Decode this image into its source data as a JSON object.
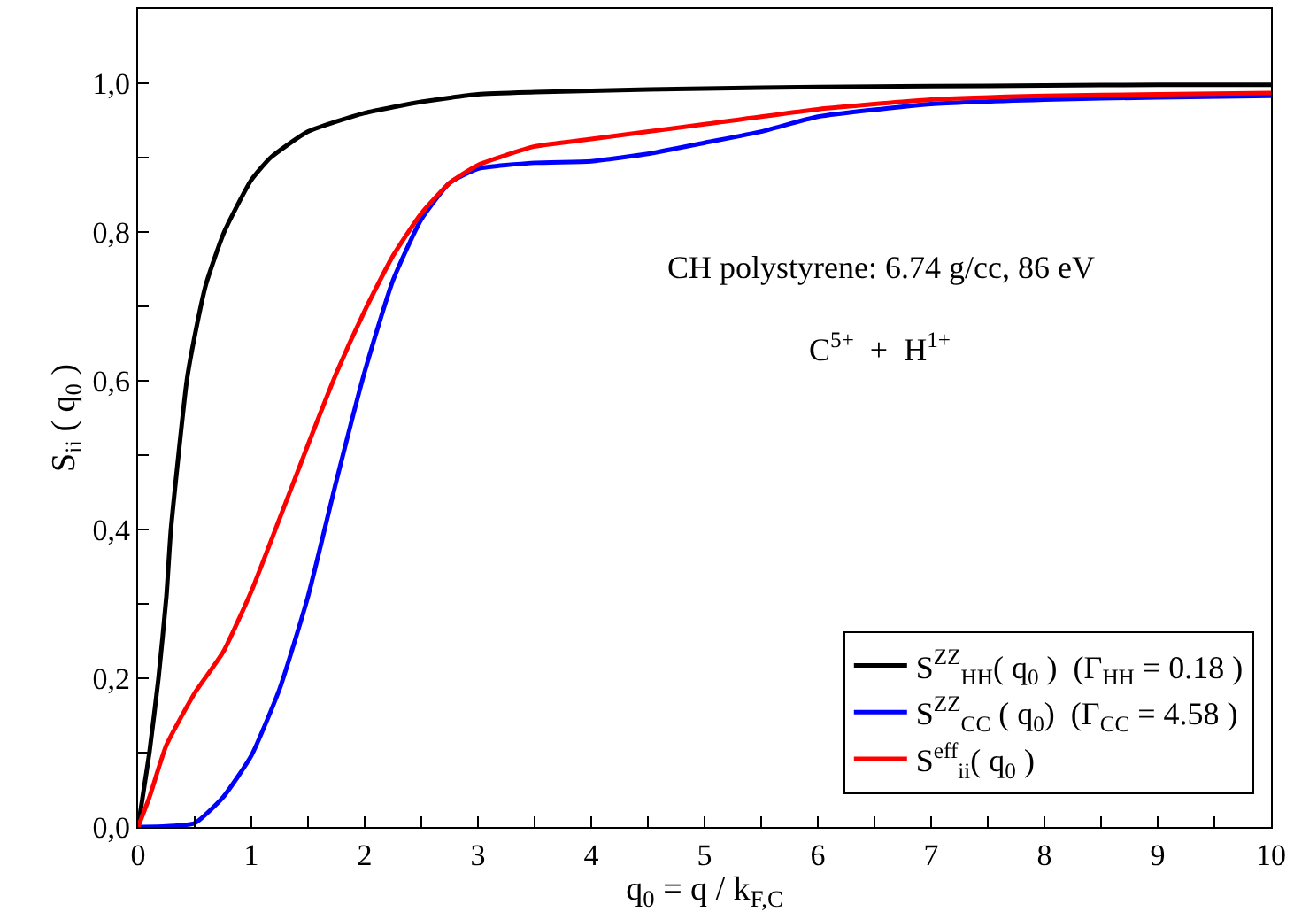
{
  "chart_data": {
    "type": "line",
    "xlabel": "q$_{0}$ = q / k$_{F,C}$",
    "ylabel": "S$_{ii}$ ( q$_{0}$ )",
    "annotations": [
      "CH polystyrene: 6.74 g/cc, 86 eV",
      "C$^{5+}$  +  H$^{1+}$"
    ],
    "x": [
      0,
      0.05,
      0.1,
      0.18,
      0.25,
      0.29,
      0.43,
      0.5,
      0.6,
      0.76,
      1,
      1.17,
      1.5,
      2,
      2.5,
      3,
      3.5,
      4,
      5,
      6,
      7,
      8,
      9,
      10
    ],
    "series": [
      {
        "name": "S$^{ZZ}$$_{HH}$( q$_{0}$ )  (Γ$_{HH}$ = 0.18 )",
        "color": "#000000",
        "values": [
          0,
          0.05,
          0.1,
          0.2,
          0.31,
          0.4,
          0.6,
          0.66,
          0.73,
          0.8,
          0.87,
          0.9,
          0.935,
          0.96,
          0.975,
          0.985,
          0.988,
          0.99,
          0.993,
          0.995,
          0.996,
          0.997,
          0.998,
          0.998
        ]
      },
      {
        "name": "S$^{ZZ}$$_{CC}$ ( q$_{0}$)  (Γ$_{CC}$ = 4.58 )",
        "color": "#0000ff",
        "x": [
          0,
          0.25,
          0.5,
          0.75,
          1,
          1.25,
          1.5,
          1.75,
          2,
          2.25,
          2.5,
          2.75,
          3,
          3.5,
          4,
          4.5,
          5,
          5.5,
          6,
          7,
          8,
          9,
          10
        ],
        "values": [
          0,
          0.001,
          0.005,
          0.04,
          0.096,
          0.186,
          0.31,
          0.465,
          0.612,
          0.735,
          0.817,
          0.866,
          0.885,
          0.893,
          0.895,
          0.905,
          0.92,
          0.935,
          0.955,
          0.972,
          0.978,
          0.981,
          0.983
        ]
      },
      {
        "name": "S$^{eff}$$_{ii}$( q$_{0}$ )",
        "color": "#ff0000",
        "x": [
          0,
          0.1,
          0.25,
          0.5,
          0.75,
          1,
          1.25,
          1.5,
          1.75,
          2,
          2.25,
          2.5,
          2.75,
          3,
          3.5,
          4,
          5,
          6,
          7,
          8,
          9,
          10
        ],
        "values": [
          0,
          0.04,
          0.11,
          0.18,
          0.235,
          0.317,
          0.415,
          0.514,
          0.61,
          0.694,
          0.768,
          0.825,
          0.866,
          0.89,
          0.915,
          0.925,
          0.945,
          0.965,
          0.978,
          0.983,
          0.985,
          0.987
        ]
      }
    ],
    "xlim": [
      0,
      10
    ],
    "xticks": [
      0,
      {
        "value": 0.5,
        "label": null
      },
      1,
      {
        "value": 1.5,
        "label": null
      },
      2,
      {
        "value": 2.5,
        "label": null
      },
      3,
      {
        "value": 3.5,
        "label": null
      },
      4,
      {
        "value": 4.5,
        "label": null
      },
      5,
      {
        "value": 5.5,
        "label": null
      },
      6,
      {
        "value": 6.5,
        "label": null
      },
      7,
      {
        "value": 7.5,
        "label": null
      },
      8,
      {
        "value": 8.5,
        "label": null
      },
      9,
      {
        "value": 9.5,
        "label": null
      },
      10
    ],
    "ylim": [
      0,
      1.1
    ],
    "yticks": [
      {
        "value": 0,
        "label": "0,0"
      },
      {
        "value": 0.1,
        "label": null
      },
      {
        "value": 0.2,
        "label": "0,2"
      },
      {
        "value": 0.3,
        "label": null
      },
      {
        "value": 0.4,
        "label": "0,4"
      },
      {
        "value": 0.5,
        "label": null
      },
      {
        "value": 0.6,
        "label": "0,6"
      },
      {
        "value": 0.7,
        "label": null
      },
      {
        "value": 0.8,
        "label": "0,8"
      },
      {
        "value": 0.9,
        "label": null
      },
      {
        "value": 1,
        "label": "1,0"
      }
    ],
    "legend": "bottom right",
    "marker": "none",
    "line_style": "solid"
  }
}
